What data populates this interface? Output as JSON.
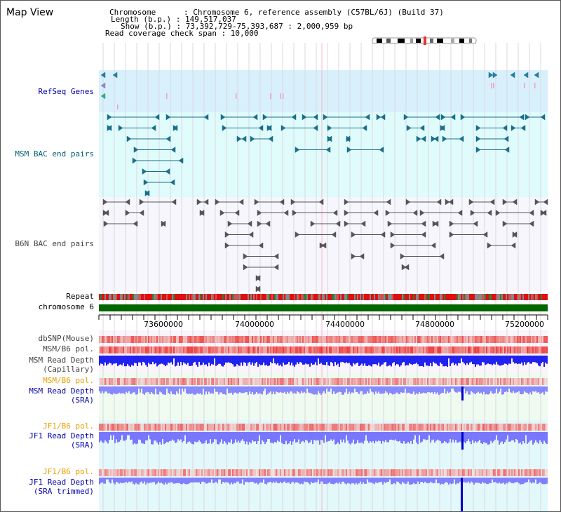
{
  "window": {
    "title": "Map View"
  },
  "assembly": {
    "lines": [
      "Chromosome      : Chromosome 6, reference assembly (C57BL/6J) (Build 37)",
      "Length (b.p.) : 149,517,037",
      "Show (b.p.) : 73,392,729-75,393,687 : 2,000,959 bp",
      "Read coverage check span : 10,000"
    ]
  },
  "tracks": {
    "refseq": "RefSeq Genes",
    "msm_bac": "MSM BAC end pairs",
    "b6n_bac": "B6N BAC end pairs",
    "repeat": "Repeat",
    "chromosome": "chromosome 6",
    "dbsnp": "dbSNP(Mouse)",
    "msm_b6_pol": "MSM/B6 pol.",
    "msm_depth_cap_1": "MSM Read Depth",
    "msm_depth_cap_2": "(Capillary)",
    "msm_b6_pol_2": "MSM/B6 pol.",
    "msm_depth_sra_1": "MSM Read Depth",
    "msm_depth_sra_2": "(SRA)",
    "jf1_b6_pol": "JF1/B6 pol.",
    "jf1_depth_sra_1": "JF1 Read Depth",
    "jf1_depth_sra_2": "(SRA)",
    "jf1_b6_pol_2": "JF1/B6 pol.",
    "jf1_depth_trim_1": "JF1 Read Depth",
    "jf1_depth_trim_2": "(SRA trimmed)"
  },
  "axis": {
    "ticks": [
      "73600000",
      "74000000",
      "74400000",
      "74800000",
      "75200000"
    ]
  },
  "colors": {
    "refseq_bg": "#d8f0fb",
    "msm_bg": "#e0fbfb",
    "b6n_bg": "#f6f6fc",
    "chrom_green": "#006600",
    "depth_blue": "#3333ee",
    "sra_blue": "#7777ff",
    "pol_red": "#ee2222"
  },
  "icons": [
    "chromosome-ideogram-icon",
    "gene-arrow-icon",
    "bac-end-arrow-icon"
  ]
}
